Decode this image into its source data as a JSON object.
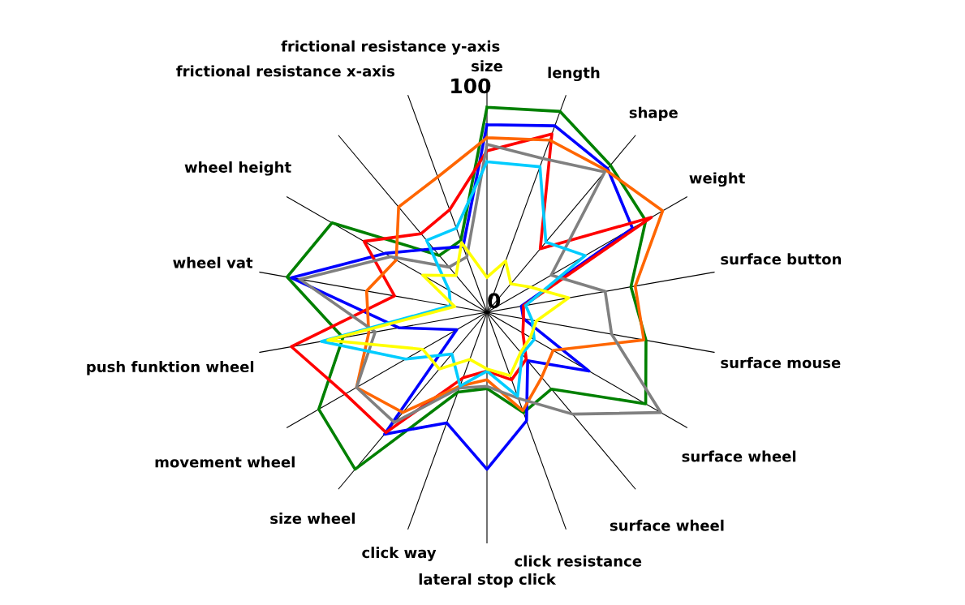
{
  "chart_data": {
    "type": "radar",
    "categories": [
      "size",
      "length",
      "shape",
      "weight",
      "surface button",
      "surface mouse",
      "surface wheel",
      "surface wheel",
      "click resistance",
      "lateral stop click",
      "click way",
      "size wheel",
      "movement wheel",
      "push funktion wheel",
      "wheel vat",
      "wheel height",
      "frictional resistance x-axis",
      "frictional resistance y-axis"
    ],
    "ylim": [
      0,
      106
    ],
    "yticks": [
      0,
      100
    ],
    "grid": "x",
    "marker": "none",
    "line_style": "solid",
    "series": [
      {
        "color": "#008000",
        "values": [
          94,
          98,
          88,
          84,
          67,
          74,
          84,
          46,
          49,
          35,
          39,
          94,
          89,
          67,
          93,
          82,
          34,
          35
        ]
      },
      {
        "color": "#0000ff",
        "values": [
          86,
          91,
          86,
          77,
          16,
          17,
          54,
          29,
          53,
          72,
          54,
          73,
          16,
          41,
          91,
          54,
          38,
          32
        ]
      },
      {
        "color": "#ff0000",
        "values": [
          74,
          87,
          38,
          87,
          17,
          17,
          19,
          28,
          33,
          27,
          32,
          72,
          75,
          91,
          43,
          65,
          47,
          50
        ]
      },
      {
        "color": "#ff6600",
        "values": [
          80,
          84,
          85,
          93,
          69,
          73,
          35,
          39,
          48,
          31,
          36,
          60,
          69,
          55,
          56,
          48,
          63,
          66
        ]
      },
      {
        "color": "#808080",
        "values": [
          77,
          75,
          84,
          34,
          55,
          58,
          92,
          61,
          42,
          34,
          37,
          66,
          69,
          52,
          87,
          51,
          27,
          27
        ]
      },
      {
        "color": "#00ccff",
        "values": [
          69,
          71,
          42,
          52,
          18,
          21,
          25,
          25,
          41,
          27,
          36,
          25,
          43,
          77,
          17,
          20,
          43,
          41
        ]
      },
      {
        "color": "#ffff00",
        "values": [
          16,
          25,
          17,
          23,
          38,
          23,
          23,
          24,
          31,
          26,
          23,
          34,
          34,
          74,
          15,
          34,
          22,
          34
        ]
      }
    ]
  }
}
